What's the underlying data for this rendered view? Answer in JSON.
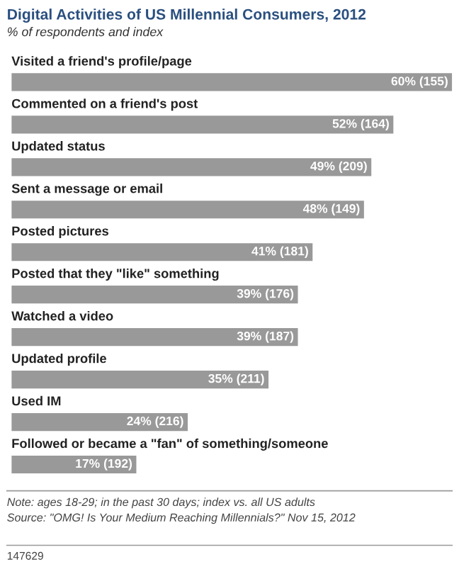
{
  "chart_data": {
    "type": "bar",
    "orientation": "horizontal",
    "title": "Digital Activities of US Millennial Consumers, 2012",
    "subtitle": "% of respondents and index",
    "categories": [
      "Visited a friend's profile/page",
      "Commented on a friend's post",
      "Updated status",
      "Sent a message or email",
      "Posted pictures",
      "Posted that they \"like\" something",
      "Watched a video",
      "Updated profile",
      "Used IM",
      "Followed or became a \"fan\" of something/someone"
    ],
    "values": [
      60,
      52,
      49,
      48,
      41,
      39,
      39,
      35,
      24,
      17
    ],
    "value_labels": [
      "60% (155)",
      "52% (164)",
      "49% (209)",
      "48% (149)",
      "41% (181)",
      "39% (176)",
      "39% (187)",
      "35% (211)",
      "24% (216)",
      "17% (192)"
    ],
    "color": "#999999",
    "annotations": [
      "Note: ages 18-29; in the past 30 days; index vs. all US adults",
      "Source: \"OMG! Is Your Medium Reaching Millennials?\" Nov 15, 2012",
      "147629"
    ]
  }
}
